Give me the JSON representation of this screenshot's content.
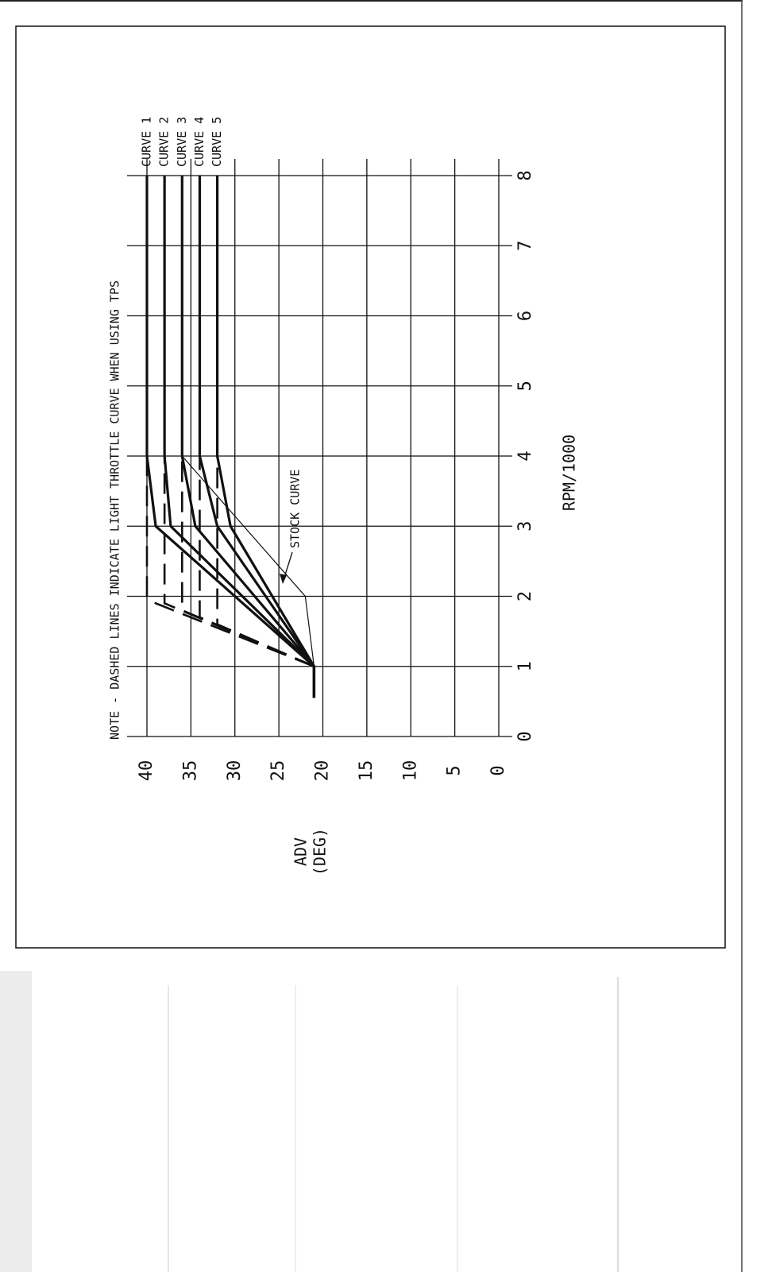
{
  "chart_data": {
    "type": "line",
    "title": "NOTE - DASHED LINES INDICATE LIGHT THROTTLE CURVE WHEN USING TPS",
    "xlabel": "RPM/1000",
    "ylabel": [
      "ADV",
      "(DEG)"
    ],
    "xlim": [
      0,
      8
    ],
    "xticks": [
      0,
      1,
      2,
      3,
      4,
      5,
      6,
      7,
      8
    ],
    "ylim": [
      0,
      40
    ],
    "yticks": [
      0,
      5,
      10,
      15,
      20,
      25,
      30,
      35,
      40
    ],
    "grid": true,
    "color": "#111111",
    "series": [
      {
        "name": "CURVE 1",
        "x": [
          0.55,
          1,
          3,
          4,
          8
        ],
        "values": [
          21,
          21,
          39,
          40,
          40
        ],
        "tps_x": [
          1,
          1.9,
          2,
          4
        ],
        "tps_values": [
          21,
          39,
          40,
          40
        ]
      },
      {
        "name": "CURVE 2",
        "x": [
          0.55,
          1,
          3,
          4,
          8
        ],
        "values": [
          21,
          21,
          37.3,
          38,
          38
        ],
        "tps_x": [
          1,
          1.9,
          4
        ],
        "tps_values": [
          21,
          38,
          38
        ]
      },
      {
        "name": "CURVE 3",
        "x": [
          0.55,
          1,
          3,
          4,
          8
        ],
        "values": [
          21,
          21,
          34.5,
          36,
          36
        ],
        "tps_x": [
          1,
          1.8,
          4
        ],
        "tps_values": [
          21,
          36,
          36
        ]
      },
      {
        "name": "CURVE 4",
        "x": [
          0.55,
          1,
          3,
          4,
          8
        ],
        "values": [
          21,
          21,
          32,
          34,
          34
        ],
        "tps_x": [
          1,
          1.7,
          4
        ],
        "tps_values": [
          21,
          34,
          34
        ]
      },
      {
        "name": "CURVE 5",
        "x": [
          0.55,
          1,
          3,
          4,
          8
        ],
        "values": [
          21,
          21,
          30.5,
          32,
          32
        ],
        "tps_x": [
          1,
          1.6,
          4
        ],
        "tps_values": [
          21,
          32,
          32
        ]
      }
    ],
    "stock": {
      "name": "STOCK CURVE",
      "x": [
        1,
        2,
        4,
        8
      ],
      "values": [
        21,
        22,
        36,
        36
      ]
    }
  }
}
